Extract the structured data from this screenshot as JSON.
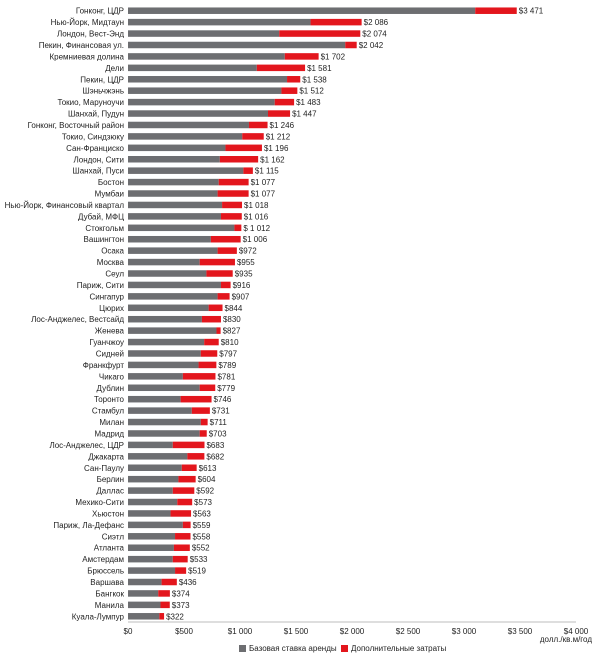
{
  "chart_data": {
    "type": "bar",
    "orientation": "horizontal",
    "stacked": true,
    "xlabel": "долл./кв.м/год",
    "xlim": [
      0,
      4000
    ],
    "xticks": [
      0,
      500,
      1000,
      1500,
      2000,
      2500,
      3000,
      3500,
      4000
    ],
    "xtick_labels": [
      "$0",
      "$500",
      "$1 000",
      "$1 500",
      "$2 000",
      "$2 500",
      "$3 000",
      "$3 500",
      "$4 000"
    ],
    "grid": false,
    "legend_position": "bottom",
    "categories": [
      "Гонконг, ЦДР",
      "Нью-Йорк, Мидтаун",
      "Лондон, Вест-Энд",
      "Пекин, Финансовая ул.",
      "Кремниевая долина",
      "Дели",
      "Пекин, ЦДР",
      "Шэньчжэнь",
      "Токио, Маруноучи",
      "Шанхай, Пудун",
      "Гонконг, Восточный район",
      "Токио, Синдзюку",
      "Сан-Франциско",
      "Лондон, Сити",
      "Шанхай, Пуси",
      "Бостон",
      "Мумбаи",
      "Нью-Йорк, Финансовый квартал",
      "Дубай, МФЦ",
      "Стокгольм",
      "Вашингтон",
      "Осака",
      "Москва",
      "Сеул",
      "Париж, Сити",
      "Сингапур",
      "Цюрих",
      "Лос-Анджелес, Вестсайд",
      "Женева",
      "Гуанчжоу",
      "Сидней",
      "Франкфурт",
      "Чикаго",
      "Дублин",
      "Торонто",
      "Стамбул",
      "Милан",
      "Мадрид",
      "Лос-Анджелес, ЦДР",
      "Джакарта",
      "Сан-Паулу",
      "Берлин",
      "Даллас",
      "Мехико-Сити",
      "Хьюстон",
      "Париж, Ла-Дефанс",
      "Сиэтл",
      "Атланта",
      "Амстердам",
      "Брюссель",
      "Варшава",
      "Бангкок",
      "Манила",
      "Куала-Лумпур"
    ],
    "totals": [
      3471,
      2086,
      2074,
      2042,
      1702,
      1581,
      1538,
      1512,
      1483,
      1447,
      1246,
      1212,
      1196,
      1162,
      1115,
      1077,
      1077,
      1018,
      1016,
      1012,
      1006,
      972,
      955,
      935,
      916,
      907,
      844,
      830,
      827,
      810,
      797,
      789,
      781,
      779,
      746,
      731,
      711,
      703,
      683,
      682,
      613,
      604,
      592,
      573,
      563,
      559,
      558,
      552,
      533,
      519,
      436,
      374,
      373,
      322
    ],
    "total_labels": [
      "$3 471",
      "$2 086",
      "$2 074",
      "$2 042",
      "$1 702",
      "$1 581",
      "$1 538",
      "$1 512",
      "$1 483",
      "$1 447",
      "$1 246",
      "$1 212",
      "$1 196",
      "$1 162",
      "$1 115",
      "$1 077",
      "$1 077",
      "$1 018",
      "$1 016",
      "$ 1 012",
      "$1 006",
      "$972",
      "$955",
      "$935",
      "$916",
      "$907",
      "$844",
      "$830",
      "$827",
      "$810",
      "$797",
      "$789",
      "$781",
      "$779",
      "$746",
      "$731",
      "$711",
      "$703",
      "$683",
      "$682",
      "$613",
      "$604",
      "$592",
      "$573",
      "$563",
      "$559",
      "$558",
      "$552",
      "$533",
      "$519",
      "$436",
      "$374",
      "$373",
      "$322"
    ],
    "series": [
      {
        "name": "Базовая ставка аренды",
        "color": "#6d6e71",
        "values": [
          3100,
          1630,
          1350,
          1940,
          1400,
          1150,
          1420,
          1370,
          1310,
          1250,
          1080,
          1020,
          870,
          820,
          1030,
          810,
          800,
          840,
          830,
          950,
          740,
          800,
          640,
          700,
          830,
          800,
          720,
          660,
          790,
          680,
          650,
          630,
          490,
          640,
          470,
          570,
          650,
          640,
          400,
          530,
          480,
          450,
          400,
          440,
          380,
          490,
          420,
          410,
          400,
          420,
          300,
          270,
          290,
          280
        ]
      },
      {
        "name": "Дополнительные затраты",
        "color": "#e3161d",
        "values": [
          371,
          456,
          724,
          102,
          302,
          431,
          118,
          142,
          173,
          197,
          166,
          192,
          326,
          342,
          85,
          267,
          277,
          178,
          186,
          62,
          266,
          172,
          315,
          235,
          86,
          107,
          124,
          170,
          37,
          130,
          147,
          159,
          291,
          139,
          276,
          161,
          61,
          63,
          283,
          152,
          133,
          154,
          192,
          133,
          183,
          69,
          138,
          142,
          133,
          99,
          136,
          104,
          83,
          42
        ]
      }
    ]
  }
}
